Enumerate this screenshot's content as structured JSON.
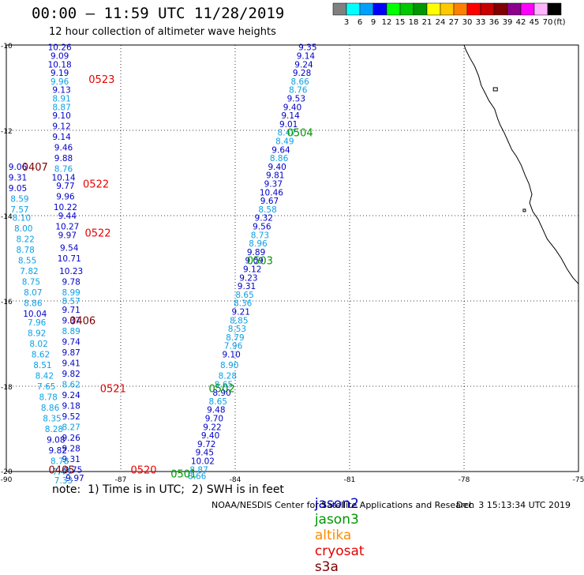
{
  "title": "00:00 – 11:59 UTC 11/28/2019",
  "subtitle": "12 hour collection of altimeter wave heights",
  "colorbar": {
    "colors": [
      "#808080",
      "#00ffff",
      "#00a0ff",
      "#0000ff",
      "#00ff00",
      "#00c800",
      "#009600",
      "#ffff00",
      "#ffc800",
      "#ff8000",
      "#ff0000",
      "#c80000",
      "#800000",
      "#8c008c",
      "#ff00ff",
      "#ffb4ff",
      "#000000"
    ],
    "labels": [
      "3",
      "6",
      "9",
      "12",
      "15",
      "18",
      "21",
      "24",
      "27",
      "30",
      "33",
      "36",
      "39",
      "42",
      "45",
      "70",
      "(ft)"
    ]
  },
  "axes": {
    "lon_ticks": [
      "-90",
      "-87",
      "-84",
      "-81",
      "-78",
      "-75"
    ],
    "lat_ticks": [
      "-10",
      "-12",
      "-14",
      "-16",
      "-18",
      "-20"
    ]
  },
  "colors": {
    "jason2": "#0000c8",
    "jason3": "#009600",
    "altika": "#ff8c00",
    "cryosat": "#e60000",
    "s3a": "#800000",
    "light": "#0aa0e6"
  },
  "note": "note:  1) Time is in UTC;  2) SWH is in feet",
  "satellites": [
    {
      "name": "jason2",
      "color": "#0000c8"
    },
    {
      "name": "jason3",
      "color": "#009600"
    },
    {
      "name": "altika",
      "color": "#ff8c00"
    },
    {
      "name": "cryosat",
      "color": "#e60000"
    },
    {
      "name": "s3a",
      "color": "#800000"
    }
  ],
  "credit": "NOAA/NESDIS Center for Satellite Applications and Research",
  "timestamp": "Dec  3 15:13:34 UTC 2019",
  "tracks": [
    {
      "id": "track-a",
      "points": [
        {
          "lon": -88.6,
          "lat": -10.05,
          "v": "10.26",
          "c": "dark"
        },
        {
          "lon": -88.6,
          "lat": -10.25,
          "v": "9.09",
          "c": "dark"
        },
        {
          "lon": -88.6,
          "lat": -10.45,
          "v": "10.18",
          "c": "dark"
        },
        {
          "lon": -88.6,
          "lat": -10.65,
          "v": "9.19",
          "c": "dark"
        },
        {
          "lon": -88.6,
          "lat": -10.85,
          "v": "9.96",
          "c": "light"
        },
        {
          "lon": -88.55,
          "lat": -11.05,
          "v": "9.13",
          "c": "dark"
        },
        {
          "lon": -88.55,
          "lat": -11.25,
          "v": "8.91",
          "c": "light"
        },
        {
          "lon": -88.55,
          "lat": -11.45,
          "v": "8.87",
          "c": "light"
        },
        {
          "lon": -88.55,
          "lat": -11.65,
          "v": "9.10",
          "c": "dark"
        },
        {
          "lon": -88.55,
          "lat": -11.9,
          "v": "9.12",
          "c": "dark"
        },
        {
          "lon": -88.55,
          "lat": -12.15,
          "v": "9.14",
          "c": "dark"
        },
        {
          "lon": -88.5,
          "lat": -12.4,
          "v": "9.46",
          "c": "dark"
        },
        {
          "lon": -88.5,
          "lat": -12.65,
          "v": "9.88",
          "c": "dark"
        },
        {
          "lon": -88.5,
          "lat": -12.9,
          "v": "8.76",
          "c": "light"
        },
        {
          "lon": -88.5,
          "lat": -13.1,
          "v": "10.14",
          "c": "dark"
        },
        {
          "lon": -88.45,
          "lat": -13.3,
          "v": "9.77",
          "c": "dark"
        },
        {
          "lon": -88.45,
          "lat": -13.55,
          "v": "9.96",
          "c": "dark"
        },
        {
          "lon": -88.45,
          "lat": -13.8,
          "v": "10.22",
          "c": "dark"
        },
        {
          "lon": -88.4,
          "lat": -14.0,
          "v": "9.44",
          "c": "dark"
        },
        {
          "lon": -88.4,
          "lat": -14.25,
          "v": "10.27",
          "c": "dark"
        },
        {
          "lon": -88.4,
          "lat": -14.45,
          "v": "9.97",
          "c": "dark"
        },
        {
          "lon": -88.35,
          "lat": -14.75,
          "v": "9.54",
          "c": "dark"
        },
        {
          "lon": -88.35,
          "lat": -15.0,
          "v": "10.71",
          "c": "dark"
        },
        {
          "lon": -88.3,
          "lat": -15.3,
          "v": "10.23",
          "c": "dark"
        },
        {
          "lon": -88.3,
          "lat": -15.55,
          "v": "9.78",
          "c": "dark"
        },
        {
          "lon": -88.3,
          "lat": -15.8,
          "v": "8.99",
          "c": "light"
        },
        {
          "lon": -88.3,
          "lat": -16.0,
          "v": "8.57",
          "c": "light"
        },
        {
          "lon": -88.3,
          "lat": -16.2,
          "v": "9.71",
          "c": "dark"
        },
        {
          "lon": -88.3,
          "lat": -16.45,
          "v": "9.37",
          "c": "dark"
        },
        {
          "lon": -88.3,
          "lat": -16.7,
          "v": "8.89",
          "c": "light"
        },
        {
          "lon": -88.3,
          "lat": -16.95,
          "v": "9.74",
          "c": "dark"
        },
        {
          "lon": -88.3,
          "lat": -17.2,
          "v": "9.87",
          "c": "dark"
        },
        {
          "lon": -88.3,
          "lat": -17.45,
          "v": "9.41",
          "c": "dark"
        },
        {
          "lon": -88.3,
          "lat": -17.7,
          "v": "9.82",
          "c": "dark"
        },
        {
          "lon": -88.3,
          "lat": -17.95,
          "v": "8.62",
          "c": "light"
        },
        {
          "lon": -88.3,
          "lat": -18.2,
          "v": "9.24",
          "c": "dark"
        },
        {
          "lon": -88.3,
          "lat": -18.45,
          "v": "9.18",
          "c": "dark"
        },
        {
          "lon": -88.3,
          "lat": -18.7,
          "v": "9.52",
          "c": "dark"
        },
        {
          "lon": -88.3,
          "lat": -18.95,
          "v": "8.27",
          "c": "light"
        },
        {
          "lon": -88.3,
          "lat": -19.2,
          "v": "9.26",
          "c": "dark"
        },
        {
          "lon": -88.3,
          "lat": -19.45,
          "v": "9.28",
          "c": "dark"
        },
        {
          "lon": -88.3,
          "lat": -19.7,
          "v": "9.31",
          "c": "dark"
        },
        {
          "lon": -88.25,
          "lat": -19.95,
          "v": "9.75",
          "c": "dark"
        },
        {
          "lon": -88.2,
          "lat": -20.15,
          "v": "9.97",
          "c": "dark"
        }
      ]
    },
    {
      "id": "track-b",
      "points": [
        {
          "lon": -89.7,
          "lat": -12.85,
          "v": "9.06",
          "c": "dark"
        },
        {
          "lon": -89.7,
          "lat": -13.1,
          "v": "9.31",
          "c": "dark"
        },
        {
          "lon": -89.7,
          "lat": -13.35,
          "v": "9.05",
          "c": "dark"
        },
        {
          "lon": -89.65,
          "lat": -13.6,
          "v": "8.59",
          "c": "light"
        },
        {
          "lon": -89.65,
          "lat": -13.85,
          "v": "7.57",
          "c": "light"
        },
        {
          "lon": -89.6,
          "lat": -14.05,
          "v": "8.10",
          "c": "light"
        },
        {
          "lon": -89.55,
          "lat": -14.3,
          "v": "8.00",
          "c": "light"
        },
        {
          "lon": -89.5,
          "lat": -14.55,
          "v": "8.22",
          "c": "light"
        },
        {
          "lon": -89.5,
          "lat": -14.8,
          "v": "8.78",
          "c": "light"
        },
        {
          "lon": -89.45,
          "lat": -15.05,
          "v": "8.55",
          "c": "light"
        },
        {
          "lon": -89.4,
          "lat": -15.3,
          "v": "7.82",
          "c": "light"
        },
        {
          "lon": -89.35,
          "lat": -15.55,
          "v": "8.75",
          "c": "light"
        },
        {
          "lon": -89.3,
          "lat": -15.8,
          "v": "8.07",
          "c": "light"
        },
        {
          "lon": -89.3,
          "lat": -16.05,
          "v": "8.86",
          "c": "light"
        },
        {
          "lon": -89.25,
          "lat": -16.3,
          "v": "10.04",
          "c": "dark"
        },
        {
          "lon": -89.2,
          "lat": -16.5,
          "v": "7.96",
          "c": "light"
        },
        {
          "lon": -89.2,
          "lat": -16.75,
          "v": "8.92",
          "c": "light"
        },
        {
          "lon": -89.15,
          "lat": -17.0,
          "v": "8.02",
          "c": "light"
        },
        {
          "lon": -89.1,
          "lat": -17.25,
          "v": "8.62",
          "c": "light"
        },
        {
          "lon": -89.05,
          "lat": -17.5,
          "v": "8.51",
          "c": "light"
        },
        {
          "lon": -89.0,
          "lat": -17.75,
          "v": "8.42",
          "c": "light"
        },
        {
          "lon": -88.95,
          "lat": -18.0,
          "v": "7.65",
          "c": "light"
        },
        {
          "lon": -88.9,
          "lat": -18.25,
          "v": "8.78",
          "c": "light"
        },
        {
          "lon": -88.85,
          "lat": -18.5,
          "v": "8.86",
          "c": "light"
        },
        {
          "lon": -88.8,
          "lat": -18.75,
          "v": "8.35",
          "c": "light"
        },
        {
          "lon": -88.75,
          "lat": -19.0,
          "v": "8.28",
          "c": "light"
        },
        {
          "lon": -88.7,
          "lat": -19.25,
          "v": "9.08",
          "c": "dark"
        },
        {
          "lon": -88.65,
          "lat": -19.5,
          "v": "9.82",
          "c": "dark"
        },
        {
          "lon": -88.6,
          "lat": -19.75,
          "v": "8.78",
          "c": "light"
        },
        {
          "lon": -88.55,
          "lat": -20.0,
          "v": "7.49",
          "c": "light"
        },
        {
          "lon": -88.5,
          "lat": -20.2,
          "v": "7.33",
          "c": "light"
        }
      ]
    },
    {
      "id": "track-c",
      "points": [
        {
          "lon": -82.1,
          "lat": -10.05,
          "v": "9.35",
          "c": "dark"
        },
        {
          "lon": -82.15,
          "lat": -10.25,
          "v": "9.14",
          "c": "dark"
        },
        {
          "lon": -82.2,
          "lat": -10.45,
          "v": "9.24",
          "c": "dark"
        },
        {
          "lon": -82.25,
          "lat": -10.65,
          "v": "9.28",
          "c": "dark"
        },
        {
          "lon": -82.3,
          "lat": -10.85,
          "v": "8.66",
          "c": "light"
        },
        {
          "lon": -82.35,
          "lat": -11.05,
          "v": "8.76",
          "c": "light"
        },
        {
          "lon": -82.4,
          "lat": -11.25,
          "v": "9.53",
          "c": "dark"
        },
        {
          "lon": -82.5,
          "lat": -11.45,
          "v": "9.40",
          "c": "dark"
        },
        {
          "lon": -82.55,
          "lat": -11.65,
          "v": "9.14",
          "c": "dark"
        },
        {
          "lon": -82.6,
          "lat": -11.85,
          "v": "9.01",
          "c": "dark"
        },
        {
          "lon": -82.65,
          "lat": -12.05,
          "v": "8.47",
          "c": "light"
        },
        {
          "lon": -82.7,
          "lat": -12.25,
          "v": "8.49",
          "c": "light"
        },
        {
          "lon": -82.8,
          "lat": -12.45,
          "v": "9.64",
          "c": "dark"
        },
        {
          "lon": -82.85,
          "lat": -12.65,
          "v": "8.86",
          "c": "light"
        },
        {
          "lon": -82.9,
          "lat": -12.85,
          "v": "9.40",
          "c": "dark"
        },
        {
          "lon": -82.95,
          "lat": -13.05,
          "v": "9.81",
          "c": "dark"
        },
        {
          "lon": -83.0,
          "lat": -13.25,
          "v": "9.37",
          "c": "dark"
        },
        {
          "lon": -83.05,
          "lat": -13.45,
          "v": "10.46",
          "c": "dark"
        },
        {
          "lon": -83.1,
          "lat": -13.65,
          "v": "9.67",
          "c": "dark"
        },
        {
          "lon": -83.15,
          "lat": -13.85,
          "v": "8.58",
          "c": "light"
        },
        {
          "lon": -83.25,
          "lat": -14.05,
          "v": "9.32",
          "c": "dark"
        },
        {
          "lon": -83.3,
          "lat": -14.25,
          "v": "9.56",
          "c": "dark"
        },
        {
          "lon": -83.35,
          "lat": -14.45,
          "v": "8.73",
          "c": "light"
        },
        {
          "lon": -83.4,
          "lat": -14.65,
          "v": "8.96",
          "c": "light"
        },
        {
          "lon": -83.45,
          "lat": -14.85,
          "v": "9.89",
          "c": "dark"
        },
        {
          "lon": -83.5,
          "lat": -15.05,
          "v": "9.09",
          "c": "dark"
        },
        {
          "lon": -83.55,
          "lat": -15.25,
          "v": "9.12",
          "c": "dark"
        },
        {
          "lon": -83.65,
          "lat": -15.45,
          "v": "9.23",
          "c": "dark"
        },
        {
          "lon": -83.7,
          "lat": -15.65,
          "v": "9.31",
          "c": "dark"
        },
        {
          "lon": -83.75,
          "lat": -15.85,
          "v": "8.65",
          "c": "light"
        },
        {
          "lon": -83.8,
          "lat": -16.05,
          "v": "8.36",
          "c": "light"
        },
        {
          "lon": -83.85,
          "lat": -16.25,
          "v": "9.21",
          "c": "dark"
        },
        {
          "lon": -83.9,
          "lat": -16.45,
          "v": "8.85",
          "c": "light"
        },
        {
          "lon": -83.95,
          "lat": -16.65,
          "v": "8.53",
          "c": "light"
        },
        {
          "lon": -84.0,
          "lat": -16.85,
          "v": "8.79",
          "c": "light"
        },
        {
          "lon": -84.05,
          "lat": -17.05,
          "v": "7.96",
          "c": "light"
        },
        {
          "lon": -84.1,
          "lat": -17.25,
          "v": "9.10",
          "c": "dark"
        },
        {
          "lon": -84.15,
          "lat": -17.5,
          "v": "8.90",
          "c": "light"
        },
        {
          "lon": -84.2,
          "lat": -17.75,
          "v": "8.28",
          "c": "light"
        },
        {
          "lon": -84.3,
          "lat": -17.95,
          "v": "8.65",
          "c": "light"
        },
        {
          "lon": -84.35,
          "lat": -18.15,
          "v": "8.90",
          "c": "dark"
        },
        {
          "lon": -84.45,
          "lat": -18.35,
          "v": "8.65",
          "c": "light"
        },
        {
          "lon": -84.5,
          "lat": -18.55,
          "v": "9.48",
          "c": "dark"
        },
        {
          "lon": -84.55,
          "lat": -18.75,
          "v": "9.70",
          "c": "dark"
        },
        {
          "lon": -84.6,
          "lat": -18.95,
          "v": "9.22",
          "c": "dark"
        },
        {
          "lon": -84.65,
          "lat": -19.15,
          "v": "9.40",
          "c": "dark"
        },
        {
          "lon": -84.75,
          "lat": -19.35,
          "v": "9.72",
          "c": "dark"
        },
        {
          "lon": -84.8,
          "lat": -19.55,
          "v": "9.45",
          "c": "dark"
        },
        {
          "lon": -84.85,
          "lat": -19.75,
          "v": "10.02",
          "c": "dark"
        },
        {
          "lon": -84.95,
          "lat": -19.95,
          "v": "8.87",
          "c": "light"
        },
        {
          "lon": -85.0,
          "lat": -20.1,
          "v": "8.66",
          "c": "light"
        }
      ]
    }
  ],
  "time_labels": [
    {
      "lon": -87.5,
      "lat": -10.8,
      "t": "0523",
      "sat": "cryosat"
    },
    {
      "lon": -87.65,
      "lat": -13.25,
      "t": "0522",
      "sat": "cryosat"
    },
    {
      "lon": -87.6,
      "lat": -14.4,
      "t": "0522",
      "sat": "cryosat"
    },
    {
      "lon": -87.2,
      "lat": -18.05,
      "t": "0521",
      "sat": "cryosat"
    },
    {
      "lon": -86.4,
      "lat": -19.95,
      "t": "0520",
      "sat": "cryosat"
    },
    {
      "lon": -89.25,
      "lat": -12.85,
      "t": "0407",
      "sat": "s3a"
    },
    {
      "lon": -88.0,
      "lat": -16.45,
      "t": "0406",
      "sat": "s3a"
    },
    {
      "lon": -88.55,
      "lat": -19.95,
      "t": "0405",
      "sat": "s3a"
    },
    {
      "lon": -82.3,
      "lat": -12.05,
      "t": "0504",
      "sat": "jason3"
    },
    {
      "lon": -83.35,
      "lat": -15.05,
      "t": "0503",
      "sat": "jason3"
    },
    {
      "lon": -84.35,
      "lat": -18.05,
      "t": "0502",
      "sat": "jason3"
    },
    {
      "lon": -85.35,
      "lat": -20.05,
      "t": "0501",
      "sat": "jason3"
    }
  ]
}
